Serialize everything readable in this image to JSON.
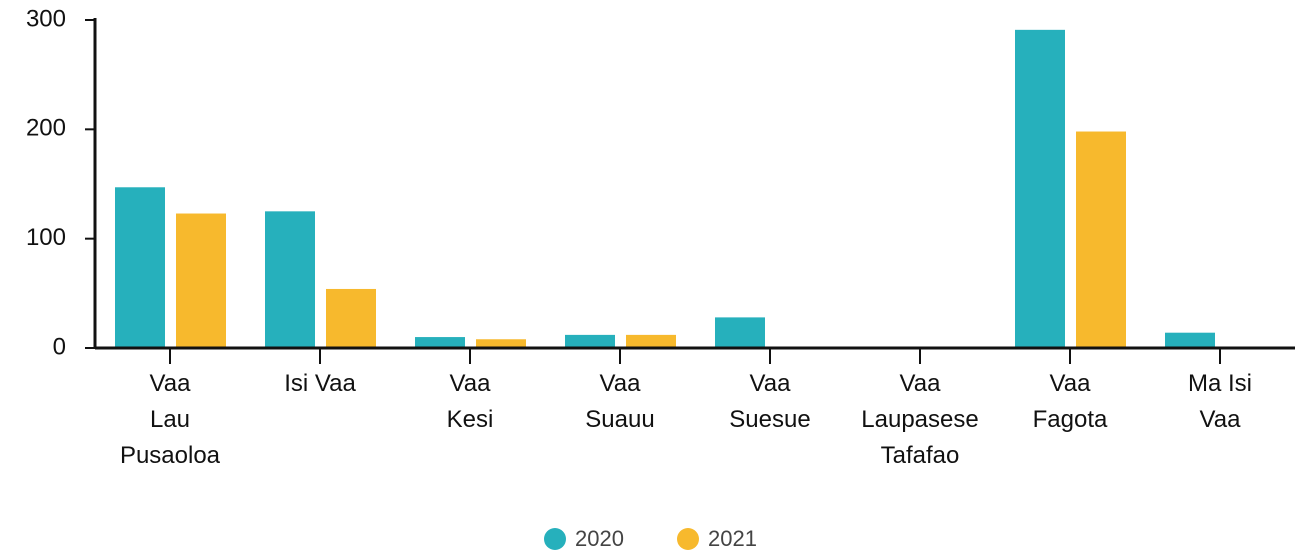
{
  "chart_data": {
    "type": "bar",
    "categories": [
      "Vaa\nLau\nPusaoloa",
      "Isi Vaa",
      "Vaa\nKesi",
      "Vaa\nSuauu",
      "Vaa\nSuesue",
      "Vaa\nLaupasese\nTafafao",
      "Vaa\nFagota",
      "Ma Isi\nVaa"
    ],
    "series": [
      {
        "name": "2020",
        "color": "#26b0bc",
        "values": [
          147,
          125,
          10,
          12,
          28,
          0,
          291,
          14
        ]
      },
      {
        "name": "2021",
        "color": "#f7b92d",
        "values": [
          123,
          54,
          8,
          12,
          0,
          0,
          198,
          0
        ]
      }
    ],
    "ylim": [
      0,
      300
    ],
    "yticks": [
      0,
      100,
      200,
      300
    ],
    "grid": false,
    "legend": "bottom"
  }
}
